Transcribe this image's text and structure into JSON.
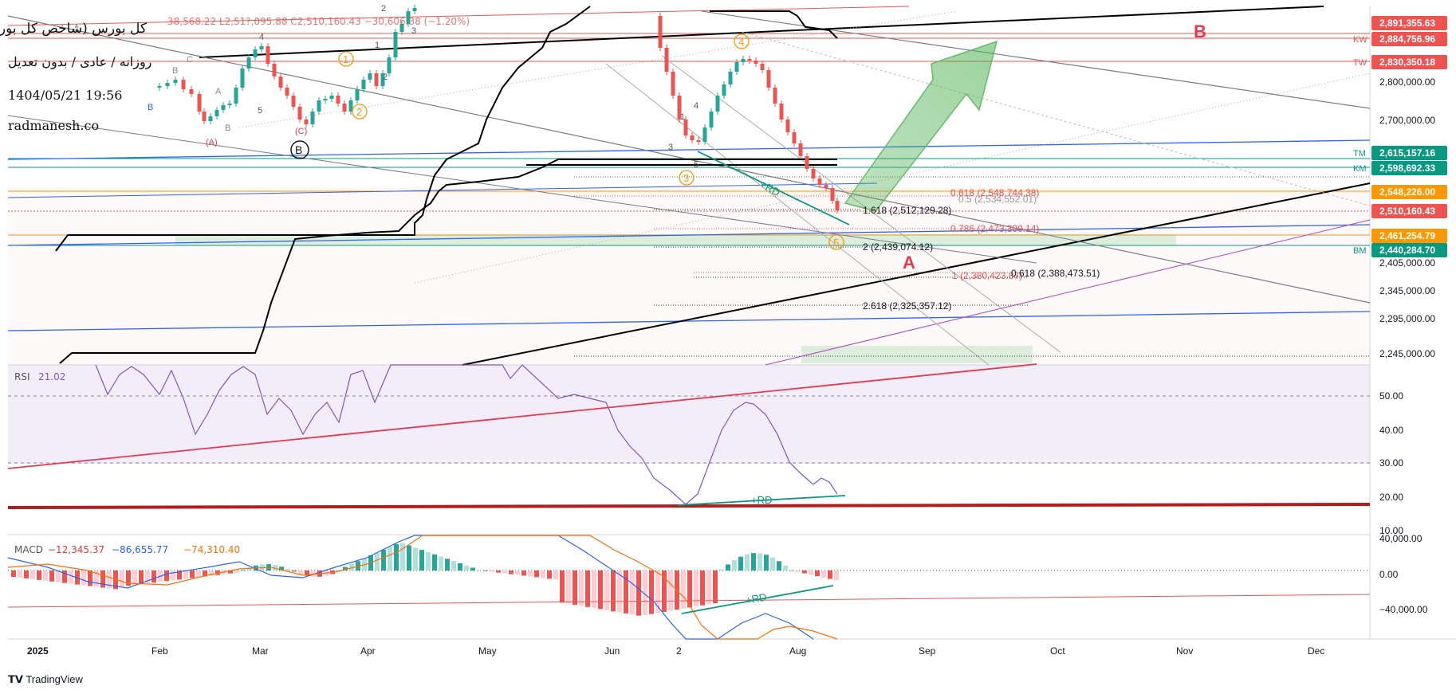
{
  "title": {
    "line1": "کل بورس (شاخص کل بورس)",
    "line2": "روزانه / عادی / بدون تعدیل",
    "line3": "1404/05/21 19:56",
    "line4": "radmanesh.co"
  },
  "ohlc_text": "38,568.22  L2,51?,095.88  C2,510,160.43  −30,606.38 (−1.20%)",
  "brand": "TradingView",
  "colors": {
    "up": "#26a69a",
    "down": "#ef5350",
    "rsi": "#7e57c2",
    "macd": "#2962ff",
    "signal": "#ff6d00",
    "price_label_red": "#ef5350",
    "price_label_green": "#089981",
    "price_label_orange": "#ff9800"
  },
  "chart_data": {
    "type": "line",
    "time_axis": {
      "labels": [
        "2025",
        "Feb",
        "Mar",
        "Apr",
        "May",
        "Jun",
        "2",
        "Aug",
        "Sep",
        "Oct",
        "Nov",
        "Dec"
      ]
    },
    "price_axis": {
      "ticks": [
        2800000,
        2700000,
        2405000,
        2345000,
        2295000,
        2245000
      ],
      "tick_labels": [
        "2,800,000.00",
        "2,700,000.00",
        "2,405,000.00",
        "2,345,000.00",
        "2,295,000.00",
        "2,245,000.00"
      ],
      "labelled_levels": [
        {
          "label": "2,891,355.63",
          "color": "#ef5350",
          "tag": ""
        },
        {
          "label": "2,884,756.96",
          "color": "#ef5350",
          "tag": "KW"
        },
        {
          "label": "2,830,350.18",
          "color": "#ef5350",
          "tag": "TW"
        },
        {
          "label": "2,615,157.16",
          "color": "#089981",
          "tag": "TM"
        },
        {
          "label": "2,598,692.33",
          "color": "#089981",
          "tag": "KM"
        },
        {
          "label": "2,548,226.00",
          "color": "#ff9800",
          "tag": ""
        },
        {
          "label": "2,510,160.43",
          "color": "#ef5350",
          "tag": ""
        },
        {
          "label": "2,461,254.79",
          "color": "#ff9800",
          "tag": ""
        },
        {
          "label": "2,440,284.70",
          "color": "#089981",
          "tag": "BM"
        }
      ]
    },
    "fib_labels": [
      {
        "text": "0.618 (2,548,744.38)",
        "color": "#ef5350"
      },
      {
        "text": "0.5 (2,534,552.01)",
        "color": "#999999"
      },
      {
        "text": "1.618 (2,512,129.28)",
        "color": "#131722"
      },
      {
        "text": "0.786 (2,473,300.14)",
        "color": "#ef5350"
      },
      {
        "text": "2 (2,439,074.12)",
        "color": "#131722"
      },
      {
        "text": "1 (2,380,423.87)",
        "color": "#ef5350"
      },
      {
        "text": "0.618 (2,388,473.51)",
        "color": "#131722"
      },
      {
        "text": "2.618 (2,325,357.12)",
        "color": "#131722"
      }
    ],
    "wave_labels": {
      "A": "A",
      "B": "B",
      "circleB": "B",
      "w1": "1",
      "w2": "2",
      "w3": "3",
      "w4": "4",
      "w5": "5",
      "small": [
        "A",
        "B",
        "B",
        "(A)",
        "(C)",
        "1",
        "2",
        "3",
        "4",
        "5",
        "1",
        "2",
        "3",
        "4",
        "5",
        "C",
        "B"
      ]
    },
    "divergence_label": "+RD",
    "price_close_recent": [
      2880000,
      2830000,
      2800000,
      2760000,
      2720000,
      2690000,
      2650000,
      2620000,
      2600000,
      2570000,
      2560000,
      2540000,
      2530000,
      2510160
    ],
    "rsi": {
      "label": "RSI",
      "current": "21.02",
      "axis_ticks": [
        "50.00",
        "40.00",
        "30.00",
        "20.00",
        "10.00"
      ],
      "upper_band": 70,
      "lower_band": 30,
      "mid": 50
    },
    "macd": {
      "label": "MACD",
      "values": [
        "−12,345.37",
        "−86,655.77",
        "−74,310.40"
      ],
      "axis_ticks": [
        "40,000.00",
        "0.00",
        "−40,000.00"
      ]
    }
  }
}
